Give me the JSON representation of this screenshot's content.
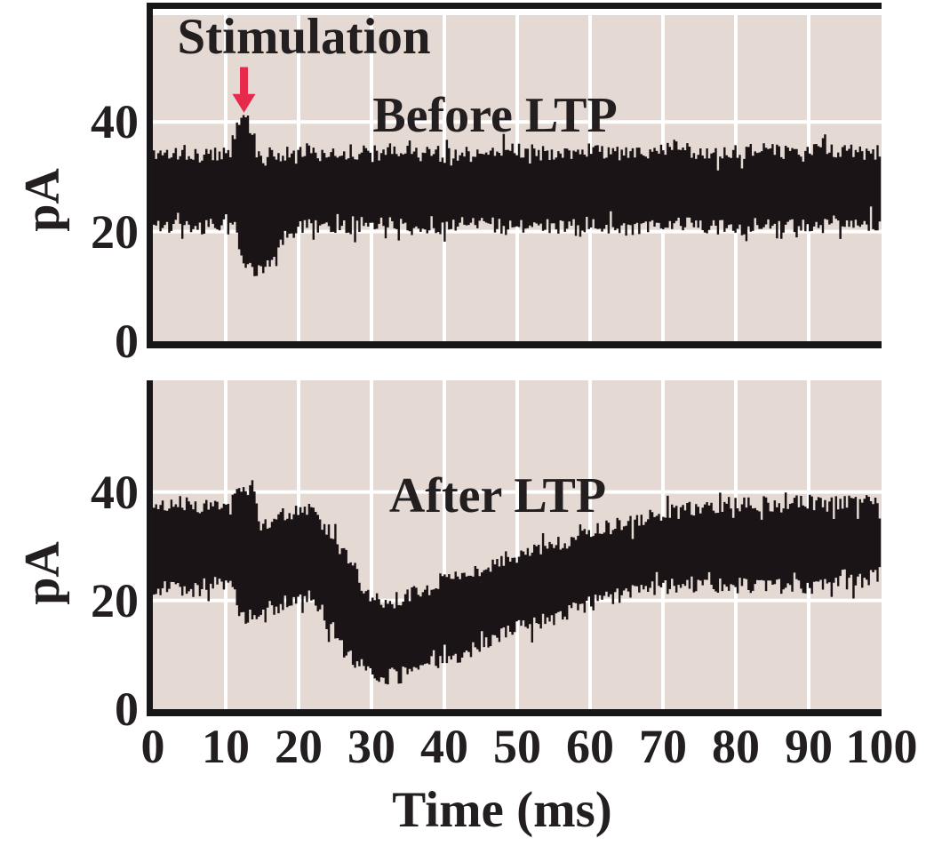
{
  "figure": {
    "ylabel": "pA",
    "xlabel": "Time (ms)",
    "colors": {
      "background": "#ffffff",
      "plot_bg": "#e4d9d3",
      "grid": "#ffffff",
      "trace": "#1a1417",
      "axis": "#19161a",
      "text": "#231f20",
      "arrow": "#e72a4b"
    }
  },
  "noise_seed": 11,
  "chart_data": [
    {
      "type": "area",
      "title": "Before LTP",
      "annotation": "Stimulation",
      "annotation_arrow": {
        "x_ms": 12.5,
        "from_pa": 50,
        "to_pa": 41.7
      },
      "ylabel": "pA",
      "xlim": [
        0,
        100
      ],
      "ylim": [
        0,
        60
      ],
      "y_ticks": [
        0,
        20,
        40
      ],
      "y_grid": [
        20,
        40
      ],
      "x_grid": [
        10,
        20,
        30,
        40,
        50,
        60,
        70,
        80,
        90
      ],
      "noise_pa": 1.4,
      "band": {
        "t": [
          0,
          2,
          4,
          6,
          8,
          10,
          11,
          11.5,
          12,
          13,
          13.8,
          14.5,
          15.5,
          16.5,
          18,
          19.5,
          21,
          24,
          28,
          32,
          36,
          40,
          44,
          48,
          52,
          56,
          60,
          64,
          68,
          72,
          76,
          80,
          84,
          88,
          92,
          96,
          100
        ],
        "upper": [
          34.5,
          34,
          34.5,
          34,
          34,
          34.5,
          34.5,
          40.5,
          41,
          41,
          37,
          33,
          33.5,
          34,
          34,
          34.5,
          35,
          34,
          34.5,
          35.5,
          34,
          34.5,
          34,
          35,
          34.5,
          34,
          35,
          34,
          34.5,
          35.5,
          34,
          34.5,
          35,
          34,
          35,
          34.5,
          34.5
        ],
        "lower": [
          21,
          21,
          21.5,
          20.5,
          21,
          21,
          20.5,
          20,
          15,
          13.5,
          13,
          13,
          13.5,
          15.5,
          19,
          20.5,
          21,
          20.5,
          21,
          21.5,
          20.5,
          21,
          21.5,
          20.5,
          21,
          21,
          21.5,
          20.5,
          21,
          21.5,
          21,
          20.5,
          21.5,
          21,
          21,
          21.5,
          21.5
        ]
      }
    },
    {
      "type": "area",
      "title": "After LTP",
      "ylabel": "pA",
      "xlim": [
        0,
        100
      ],
      "ylim": [
        0,
        60
      ],
      "y_ticks": [
        0,
        20,
        40
      ],
      "y_grid": [
        20,
        40
      ],
      "x_grid": [
        10,
        20,
        30,
        40,
        50,
        60,
        70,
        80,
        90
      ],
      "x_ticks": [
        0,
        10,
        20,
        30,
        40,
        50,
        60,
        70,
        80,
        90,
        100
      ],
      "noise_pa": 1.5,
      "band": {
        "t": [
          0,
          2,
          4,
          6,
          8,
          10,
          11,
          11.5,
          13,
          14,
          14.6,
          16,
          18,
          20,
          21,
          22,
          23,
          24,
          25,
          26,
          27,
          28,
          29,
          30,
          31,
          32,
          33,
          34,
          36,
          38,
          40,
          42,
          44,
          46,
          48,
          50,
          52,
          54,
          56,
          58,
          60,
          62,
          64,
          66,
          68,
          70,
          72,
          74,
          76,
          78,
          80,
          82,
          84,
          86,
          88,
          90,
          92,
          94,
          96,
          98,
          100
        ],
        "upper": [
          37,
          37.5,
          38,
          37,
          37.5,
          38,
          39,
          40.5,
          40.5,
          40,
          34,
          35,
          36,
          37,
          36.5,
          36,
          34.5,
          33,
          31,
          29,
          27,
          24.5,
          22,
          20.5,
          20,
          20,
          20,
          20.5,
          21.5,
          22.5,
          23.5,
          24.5,
          25.5,
          26.5,
          27.5,
          28,
          28.5,
          29.5,
          30.5,
          31.5,
          32.5,
          33.5,
          34,
          34.5,
          35.5,
          36,
          36.5,
          37,
          37.5,
          37.5,
          38,
          37.5,
          38,
          37.5,
          38,
          38,
          37.5,
          38,
          38,
          38,
          38
        ],
        "lower": [
          22,
          22.5,
          22,
          22,
          23,
          22.5,
          22,
          17.5,
          17,
          17,
          17,
          17.5,
          19,
          21,
          21,
          20,
          17,
          15,
          13,
          11,
          9.5,
          8.5,
          7.5,
          6.5,
          6.5,
          6,
          6.5,
          7,
          8,
          8.5,
          9,
          10,
          11,
          12.5,
          14,
          15,
          15.5,
          16.5,
          17.5,
          18.5,
          19.5,
          20.5,
          21,
          21.5,
          22,
          22.5,
          23,
          23,
          22.5,
          23,
          23,
          22.5,
          23,
          22.5,
          23,
          22.5,
          23,
          23.5,
          23.5,
          24,
          25
        ]
      }
    }
  ]
}
